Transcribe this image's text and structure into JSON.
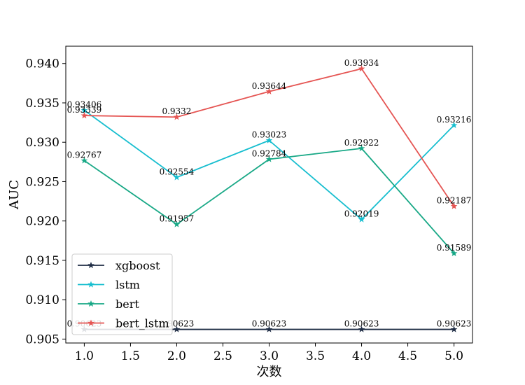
{
  "chart_data": {
    "type": "line",
    "title": "",
    "xlabel": "次数",
    "ylabel": "AUC",
    "x": [
      1,
      2,
      3,
      4,
      5
    ],
    "xlim": [
      0.8,
      5.2
    ],
    "ylim": [
      0.9045,
      0.9422
    ],
    "xticks": [
      "1.0",
      "1.5",
      "2.0",
      "2.5",
      "3.0",
      "3.5",
      "4.0",
      "4.5",
      "5.0"
    ],
    "yticks": [
      "0.905",
      "0.910",
      "0.915",
      "0.920",
      "0.925",
      "0.930",
      "0.935",
      "0.940"
    ],
    "grid": false,
    "legend_position": "lower-left",
    "marker": "star",
    "series": [
      {
        "name": "xgboost",
        "color": "#1f2d45",
        "values": [
          0.90623,
          0.90623,
          0.90623,
          0.90623,
          0.90623
        ],
        "labels": [
          "0.90623",
          "0.90623",
          "0.90623",
          "0.90623",
          "0.90623"
        ]
      },
      {
        "name": "lstm",
        "color": "#17becf",
        "values": [
          0.93406,
          0.92554,
          0.93023,
          0.92019,
          0.93216
        ],
        "labels": [
          "0.93406",
          "0.92554",
          "0.93023",
          "0.92019",
          "0.93216"
        ]
      },
      {
        "name": "bert",
        "color": "#18a886",
        "values": [
          0.92767,
          0.91957,
          0.92784,
          0.92922,
          0.91589
        ],
        "labels": [
          "0.92767",
          "0.91957",
          "0.92784",
          "0.92922",
          "0.91589"
        ]
      },
      {
        "name": "bert_lstm",
        "color": "#e55553",
        "values": [
          0.93339,
          0.9332,
          0.93644,
          0.93934,
          0.92187
        ],
        "labels": [
          "0.93339",
          "0.9332",
          "0.93644",
          "0.93934",
          "0.92187"
        ]
      }
    ]
  }
}
